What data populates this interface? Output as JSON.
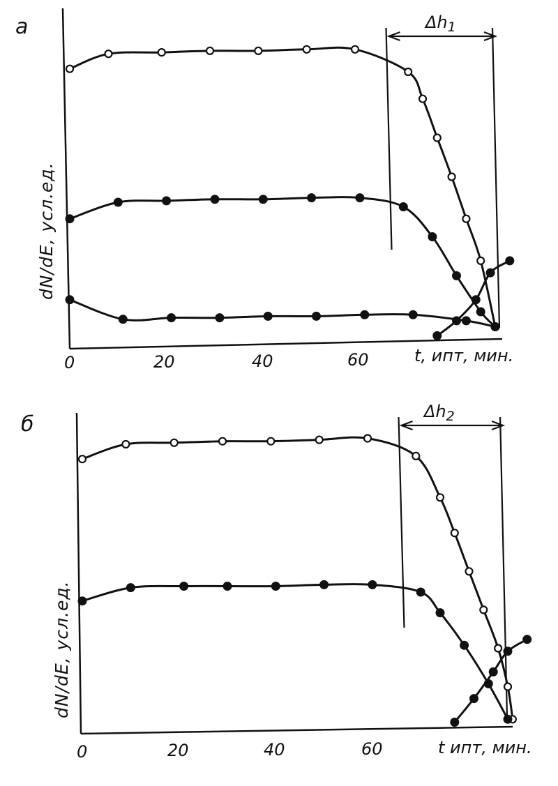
{
  "chart_data": [
    {
      "panel": "a",
      "type": "line",
      "xlabel": "t, ипт, мин.",
      "ylabel": "dN/dE, усл.ед.",
      "xticks": [
        "0",
        "20",
        "40",
        "60"
      ],
      "xlim": [
        0,
        88
      ],
      "ylim": [
        0,
        100
      ],
      "grid": false,
      "legend": "none",
      "delta_label": "Δh",
      "delta_sub": "1",
      "delta_range": [
        66,
        88
      ],
      "series": [
        {
          "marker": "open",
          "x": [
            0,
            8,
            19,
            29,
            39,
            49,
            59,
            70,
            73,
            76,
            79,
            82,
            85,
            88
          ],
          "y": [
            91,
            96,
            96.5,
            97,
            97,
            97.5,
            97.5,
            90,
            81,
            68,
            55,
            41,
            27,
            5
          ]
        },
        {
          "marker": "filled",
          "x": [
            0,
            10,
            20,
            30,
            40,
            50,
            60,
            69,
            75,
            80,
            85,
            88
          ],
          "y": [
            41,
            46.5,
            47,
            47.5,
            47.5,
            48,
            48,
            45,
            35,
            22,
            10,
            5
          ]
        },
        {
          "marker": "filled",
          "x": [
            0,
            11,
            21,
            31,
            41,
            51,
            61,
            71,
            82,
            88
          ],
          "y": [
            14,
            7.5,
            8,
            8,
            8.5,
            8.5,
            9,
            9,
            7,
            5
          ]
        },
        {
          "marker": "filled",
          "x": [
            76,
            80,
            84,
            87,
            91
          ],
          "y": [
            2,
            7,
            14,
            23,
            27
          ]
        }
      ]
    },
    {
      "panel": "б",
      "type": "line",
      "xlabel": "t ипт, мин.",
      "ylabel": "dN/dE, усл.ед.",
      "xticks": [
        "0",
        "20",
        "40",
        "60"
      ],
      "xlim": [
        0,
        88
      ],
      "ylim": [
        0,
        100
      ],
      "grid": false,
      "legend": "none",
      "delta_label": "Δh",
      "delta_sub": "2",
      "delta_range": [
        66,
        87
      ],
      "series": [
        {
          "marker": "open",
          "x": [
            0,
            9,
            19,
            29,
            39,
            49,
            59,
            69,
            74,
            77,
            80,
            83,
            86,
            88,
            89
          ],
          "y": [
            91,
            96,
            96.5,
            97,
            97,
            97.5,
            98,
            92,
            78,
            66,
            53,
            40,
            27,
            14,
            3
          ]
        },
        {
          "marker": "filled",
          "x": [
            0,
            10,
            21,
            30,
            40,
            50,
            60,
            70,
            74,
            79,
            84,
            88
          ],
          "y": [
            43,
            47.5,
            48,
            48,
            48,
            48.5,
            48.5,
            46,
            39,
            28,
            15,
            3
          ]
        },
        {
          "marker": "filled",
          "x": [
            77,
            81,
            85,
            88,
            92
          ],
          "y": [
            2,
            10,
            19,
            26,
            30
          ]
        }
      ]
    }
  ]
}
